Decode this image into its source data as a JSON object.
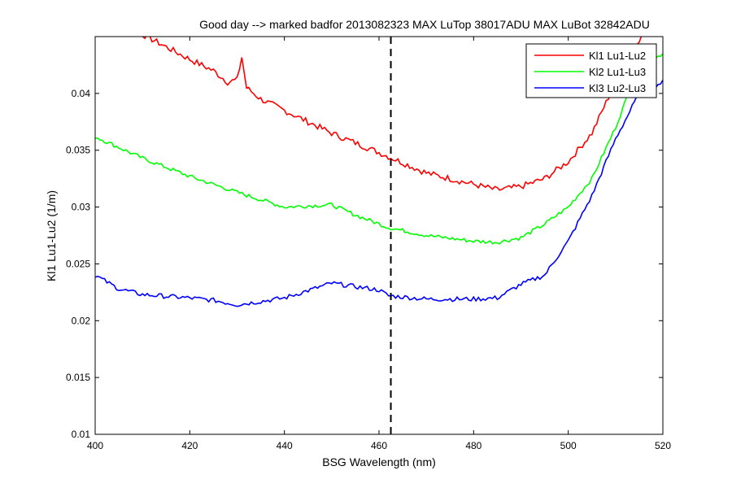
{
  "chart_data": {
    "type": "line",
    "title": "Good day --> marked badfor 2013082323  MAX LuTop 38017ADU    MAX LuBot 32842ADU",
    "xlabel": "BSG Wavelength (nm)",
    "ylabel": "Kl1 Lu1-Lu2 (1/m)",
    "xlim": [
      400,
      520
    ],
    "ylim": [
      0.01,
      0.045
    ],
    "xticks": [
      "400",
      "420",
      "440",
      "460",
      "480",
      "500",
      "520"
    ],
    "yticks": [
      "0.01",
      "0.015",
      "0.02",
      "0.025",
      "0.03",
      "0.035",
      "0.04"
    ],
    "grid": false,
    "legend_position": "top-right",
    "vline": {
      "x": 462.5,
      "style": "dashed",
      "color": "#000000"
    },
    "series": [
      {
        "name": "Kl1 Lu1-Lu2",
        "color": "#ff0000",
        "points": [
          [
            400,
            0.0478
          ],
          [
            410,
            0.0452
          ],
          [
            420,
            0.043
          ],
          [
            425,
            0.042
          ],
          [
            428,
            0.041
          ],
          [
            430,
            0.0412
          ],
          [
            431,
            0.0432
          ],
          [
            432,
            0.0405
          ],
          [
            435,
            0.0395
          ],
          [
            440,
            0.0385
          ],
          [
            450,
            0.0365
          ],
          [
            460,
            0.0348
          ],
          [
            470,
            0.033
          ],
          [
            480,
            0.032
          ],
          [
            485,
            0.0315
          ],
          [
            490,
            0.0318
          ],
          [
            495,
            0.0325
          ],
          [
            500,
            0.034
          ],
          [
            505,
            0.0365
          ],
          [
            510,
            0.041
          ],
          [
            513,
            0.044
          ],
          [
            517,
            0.0455
          ]
        ]
      },
      {
        "name": "Kl2 Lu1-Lu3",
        "color": "#00ff00",
        "points": [
          [
            400,
            0.0362
          ],
          [
            410,
            0.0343
          ],
          [
            420,
            0.0327
          ],
          [
            430,
            0.0313
          ],
          [
            440,
            0.03
          ],
          [
            450,
            0.0302
          ],
          [
            455,
            0.0293
          ],
          [
            462,
            0.0282
          ],
          [
            470,
            0.0275
          ],
          [
            480,
            0.027
          ],
          [
            485,
            0.0269
          ],
          [
            490,
            0.0273
          ],
          [
            495,
            0.0285
          ],
          [
            500,
            0.03
          ],
          [
            505,
            0.0325
          ],
          [
            510,
            0.037
          ],
          [
            515,
            0.0425
          ],
          [
            520,
            0.0435
          ]
        ]
      },
      {
        "name": "Kl3 Lu2-Lu3",
        "color": "#0000ff",
        "points": [
          [
            400,
            0.024
          ],
          [
            405,
            0.0228
          ],
          [
            410,
            0.0223
          ],
          [
            420,
            0.022
          ],
          [
            425,
            0.0218
          ],
          [
            430,
            0.0214
          ],
          [
            440,
            0.022
          ],
          [
            450,
            0.0233
          ],
          [
            455,
            0.023
          ],
          [
            460,
            0.0227
          ],
          [
            462,
            0.0222
          ],
          [
            470,
            0.0219
          ],
          [
            480,
            0.0219
          ],
          [
            485,
            0.022
          ],
          [
            490,
            0.0232
          ],
          [
            495,
            0.024
          ],
          [
            500,
            0.027
          ],
          [
            505,
            0.031
          ],
          [
            510,
            0.036
          ],
          [
            515,
            0.04
          ],
          [
            520,
            0.041
          ]
        ]
      }
    ]
  }
}
